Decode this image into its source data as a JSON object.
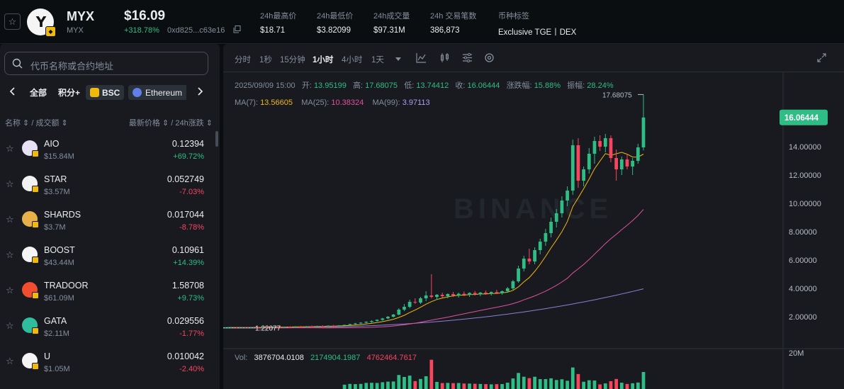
{
  "header": {
    "symbol": "MYX",
    "symbol_sub": "MYX",
    "price": "$16.09",
    "change": "+318.78%",
    "address": "0xd825...c63e16",
    "logo_mark": "Y",
    "stats": [
      {
        "label": "24h最高价",
        "value": "$18.71"
      },
      {
        "label": "24h最低价",
        "value": "$3.82099"
      },
      {
        "label": "24h成交量",
        "value": "$97.31M"
      },
      {
        "label": "24h 交易笔数",
        "value": "386,873"
      },
      {
        "label": "币种标签",
        "value": "Exclusive TGE丨DEX"
      }
    ]
  },
  "sidebar": {
    "search_placeholder": "代币名称或合约地址",
    "chains": [
      "全部",
      "积分+",
      "BSC",
      "Ethereum"
    ],
    "col_name": "名称 ⇕ / 成交额 ⇕",
    "col_price": "最新价格 ⇕ / 24h涨跌 ⇕",
    "tokens": [
      {
        "name": "AIO",
        "vol": "$15.84M",
        "price": "0.12394",
        "change": "+69.72%",
        "dir": "up",
        "icon_color": "#e8e0f5",
        "icon": "aio-icon"
      },
      {
        "name": "STAR",
        "vol": "$3.57M",
        "price": "0.052749",
        "change": "-7.03%",
        "dir": "down",
        "icon_color": "#f2f2f2",
        "icon": "star-token-icon"
      },
      {
        "name": "SHARDS",
        "vol": "$3.7M",
        "price": "0.017044",
        "change": "-8.78%",
        "dir": "down",
        "icon_color": "#e8b04a",
        "icon": "shards-icon"
      },
      {
        "name": "BOOST",
        "vol": "$43.44M",
        "price": "0.10961",
        "change": "+14.39%",
        "dir": "up",
        "icon_color": "#f5f5f5",
        "icon": "boost-icon"
      },
      {
        "name": "TRADOOR",
        "vol": "$61.09M",
        "price": "1.58708",
        "change": "+9.73%",
        "dir": "up",
        "icon_color": "#f04e2f",
        "icon": "tradoor-icon"
      },
      {
        "name": "GATA",
        "vol": "$2.11M",
        "price": "0.029556",
        "change": "-1.77%",
        "dir": "down",
        "icon_color": "#2ebd9d",
        "icon": "gata-icon"
      },
      {
        "name": "U",
        "vol": "$1.05M",
        "price": "0.010042",
        "change": "-2.40%",
        "dir": "down",
        "icon_color": "#f5f5f5",
        "icon": "u-token-icon"
      }
    ]
  },
  "chart": {
    "timeframes": [
      "分时",
      "1秒",
      "15分钟",
      "1小时",
      "4小时",
      "1天"
    ],
    "active_timeframe": "1小时",
    "ohlc": {
      "time": "2025/09/09 15:00",
      "open_label": "开:",
      "open": "13.95199",
      "high_label": "高:",
      "high": "17.68075",
      "low_label": "低:",
      "low": "13.74412",
      "close_label": "收:",
      "close": "16.06444",
      "chg_label": "涨跌幅:",
      "chg": "15.88%",
      "amp_label": "振幅:",
      "amp": "28.24%"
    },
    "ma": {
      "ma7_label": "MA(7):",
      "ma7": "13.56605",
      "ma25_label": "MA(25):",
      "ma25": "10.38324",
      "ma99_label": "MA(99):",
      "ma99": "3.97113"
    },
    "volume": {
      "label": "Vol:",
      "v1": "3876704.0108",
      "v2": "2174904.1987",
      "v3": "4762464.7617"
    },
    "watermark": "BINANCE",
    "current_price_tag": "16.06444",
    "high_marker": "17.68075",
    "low_marker": "1.22077",
    "vol_axis_top": "20M",
    "colors": {
      "up": "#2ebd85",
      "down": "#f6465d",
      "ma7": "#f0b90b",
      "ma25": "#e0529c",
      "ma99": "#8b7fd6"
    }
  },
  "chart_data": {
    "type": "candlestick",
    "title": "MYX",
    "ylim": [
      0,
      18.5
    ],
    "y_ticks": [
      "2.00000",
      "4.00000",
      "6.00000",
      "8.00000",
      "10.00000",
      "12.00000",
      "14.00000"
    ],
    "candles": [
      [
        1.22,
        1.26,
        1.2,
        1.24
      ],
      [
        1.24,
        1.27,
        1.21,
        1.23
      ],
      [
        1.23,
        1.26,
        1.21,
        1.25
      ],
      [
        1.25,
        1.28,
        1.22,
        1.24
      ],
      [
        1.24,
        1.27,
        1.22,
        1.26
      ],
      [
        1.26,
        1.29,
        1.23,
        1.25
      ],
      [
        1.25,
        1.28,
        1.22,
        1.27
      ],
      [
        1.27,
        1.3,
        1.24,
        1.26
      ],
      [
        1.26,
        1.3,
        1.24,
        1.28
      ],
      [
        1.28,
        1.32,
        1.25,
        1.27
      ],
      [
        1.27,
        1.31,
        1.25,
        1.3
      ],
      [
        1.3,
        1.34,
        1.27,
        1.29
      ],
      [
        1.29,
        1.33,
        1.26,
        1.31
      ],
      [
        1.31,
        1.36,
        1.28,
        1.3
      ],
      [
        1.3,
        1.34,
        1.27,
        1.33
      ],
      [
        1.33,
        1.38,
        1.3,
        1.32
      ],
      [
        1.32,
        1.37,
        1.29,
        1.35
      ],
      [
        1.35,
        1.4,
        1.31,
        1.34
      ],
      [
        1.34,
        1.39,
        1.31,
        1.37
      ],
      [
        1.37,
        1.42,
        1.33,
        1.36
      ],
      [
        1.36,
        1.41,
        1.33,
        1.39
      ],
      [
        1.39,
        1.45,
        1.35,
        1.42
      ],
      [
        1.42,
        1.5,
        1.38,
        1.48
      ],
      [
        1.48,
        1.56,
        1.44,
        1.53
      ],
      [
        1.53,
        1.62,
        1.49,
        1.58
      ],
      [
        1.58,
        1.68,
        1.52,
        1.64
      ],
      [
        1.64,
        1.75,
        1.58,
        1.7
      ],
      [
        1.7,
        1.82,
        1.65,
        1.78
      ],
      [
        1.78,
        1.92,
        1.72,
        1.88
      ],
      [
        1.88,
        2.05,
        1.82,
        2.0
      ],
      [
        2.0,
        2.2,
        1.95,
        2.15
      ],
      [
        2.15,
        2.6,
        2.1,
        2.5
      ],
      [
        2.5,
        2.9,
        2.4,
        2.7
      ],
      [
        2.7,
        3.2,
        2.6,
        3.05
      ],
      [
        3.05,
        3.3,
        2.9,
        3.0
      ],
      [
        3.0,
        3.4,
        2.9,
        3.3
      ],
      [
        3.3,
        3.8,
        3.1,
        3.5
      ],
      [
        3.5,
        5.0,
        3.3,
        3.4
      ],
      [
        3.4,
        3.6,
        3.2,
        3.55
      ],
      [
        3.55,
        3.7,
        3.35,
        3.45
      ],
      [
        3.45,
        3.65,
        3.3,
        3.6
      ],
      [
        3.6,
        3.75,
        3.4,
        3.5
      ],
      [
        3.5,
        3.7,
        3.35,
        3.62
      ],
      [
        3.62,
        3.78,
        3.45,
        3.55
      ],
      [
        3.55,
        3.72,
        3.4,
        3.68
      ],
      [
        3.68,
        3.82,
        3.5,
        3.58
      ],
      [
        3.58,
        3.75,
        3.45,
        3.7
      ],
      [
        3.7,
        3.85,
        3.55,
        3.62
      ],
      [
        3.62,
        3.78,
        3.5,
        3.74
      ],
      [
        3.74,
        3.9,
        3.6,
        3.66
      ],
      [
        3.66,
        3.85,
        3.55,
        3.8
      ],
      [
        3.8,
        4.1,
        3.7,
        4.0
      ],
      [
        4.0,
        4.6,
        3.9,
        4.5
      ],
      [
        4.5,
        5.6,
        4.4,
        5.4
      ],
      [
        5.4,
        6.3,
        5.2,
        6.1
      ],
      [
        6.1,
        6.8,
        5.7,
        5.9
      ],
      [
        5.9,
        6.9,
        5.7,
        6.7
      ],
      [
        6.7,
        7.5,
        6.4,
        7.3
      ],
      [
        7.3,
        8.2,
        7.0,
        7.9
      ],
      [
        7.9,
        9.0,
        7.6,
        8.7
      ],
      [
        8.7,
        9.6,
        8.3,
        9.3
      ],
      [
        9.3,
        10.5,
        9.0,
        10.2
      ],
      [
        10.2,
        11.2,
        9.8,
        10.9
      ],
      [
        10.9,
        14.5,
        10.6,
        14.1
      ],
      [
        14.1,
        14.6,
        11.1,
        11.6
      ],
      [
        11.6,
        12.6,
        11.2,
        12.4
      ],
      [
        12.4,
        13.9,
        12.1,
        13.5
      ],
      [
        13.5,
        14.7,
        12.8,
        14.4
      ],
      [
        14.4,
        14.8,
        13.7,
        14.0
      ],
      [
        14.0,
        14.9,
        13.6,
        14.6
      ],
      [
        14.6,
        14.8,
        12.9,
        13.2
      ],
      [
        13.2,
        13.8,
        11.6,
        12.4
      ],
      [
        12.4,
        13.3,
        12.0,
        13.1
      ],
      [
        13.1,
        13.5,
        12.4,
        12.6
      ],
      [
        12.6,
        13.2,
        12.0,
        13.0
      ],
      [
        13.0,
        14.2,
        12.8,
        13.95
      ],
      [
        13.95,
        17.68,
        13.74,
        16.06
      ]
    ],
    "ma7_endpoint": 13.56605,
    "ma25_endpoint": 10.38324,
    "ma99_endpoint": 3.97113
  }
}
